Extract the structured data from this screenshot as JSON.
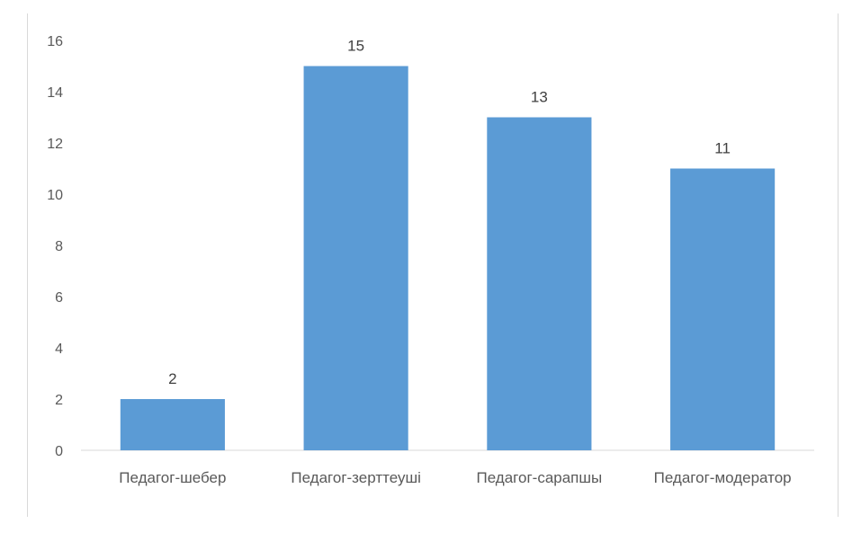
{
  "chart_data": {
    "type": "bar",
    "categories": [
      "Педагог-шебер",
      "Педагог-зерттеуші",
      "Педагог-сарапшы",
      "Педагог-модератор"
    ],
    "values": [
      2,
      15,
      13,
      11
    ],
    "data_labels": [
      "2",
      "15",
      "13",
      "11"
    ],
    "title": "",
    "xlabel": "",
    "ylabel": "",
    "ylim": [
      0,
      16
    ],
    "yticks": [
      "0",
      "2",
      "4",
      "6",
      "8",
      "10",
      "12",
      "14",
      "16"
    ],
    "grid": false,
    "legend": "none",
    "bar_color": "#5b9bd5",
    "axis_color": "#d9d9d9"
  }
}
